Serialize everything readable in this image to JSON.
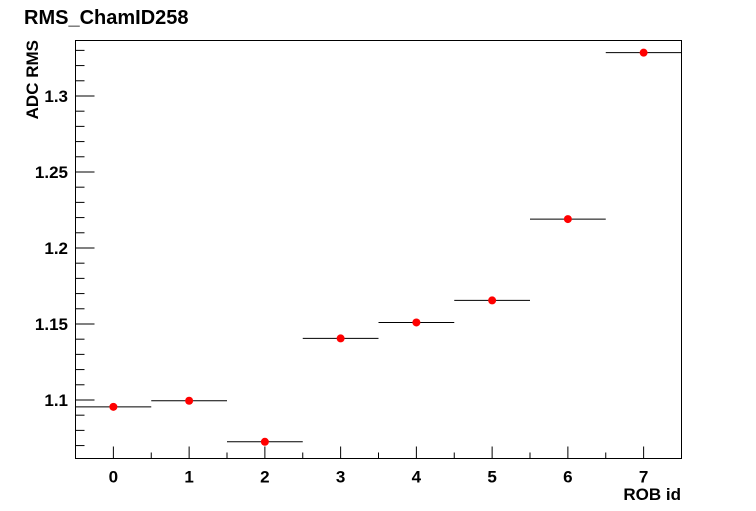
{
  "chart_data": {
    "type": "scatter",
    "title": "RMS_ChamID258",
    "xlabel": "ROB id",
    "ylabel": "ADC RMS",
    "x_ticks": [
      0,
      1,
      2,
      3,
      4,
      5,
      6,
      7
    ],
    "y_ticks": [
      1.1,
      1.15,
      1.2,
      1.25,
      1.3
    ],
    "xlim": [
      -0.5,
      7.5
    ],
    "ylim": [
      1.0615,
      1.3365
    ],
    "x_error": 0.5,
    "grid": false,
    "marker_color": "#ff0000",
    "series": [
      {
        "x": [
          0,
          1,
          2,
          3,
          4,
          5,
          6,
          7
        ],
        "y": [
          1.0955,
          1.0995,
          1.0725,
          1.1405,
          1.151,
          1.1655,
          1.219,
          1.3285
        ]
      }
    ]
  }
}
